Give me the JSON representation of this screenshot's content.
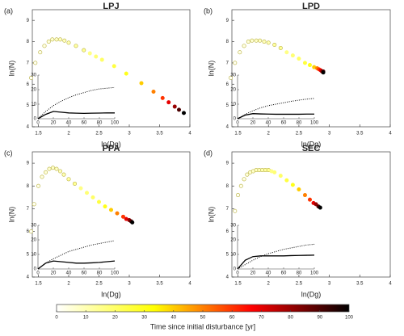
{
  "chart_data": [
    {
      "type": "scatter",
      "title": "LPJ",
      "panel_label": "(a)",
      "xlabel": "ln(Dg)",
      "ylabel": "ln(N)",
      "xlim": [
        1.4,
        4
      ],
      "ylim": [
        4,
        9.5
      ],
      "xticks": [
        1.5,
        2,
        2.5,
        3,
        3.5,
        4
      ],
      "yticks": [
        4,
        5,
        6,
        7,
        8,
        9
      ],
      "x": [
        1.38,
        1.45,
        1.53,
        1.6,
        1.67,
        1.73,
        1.8,
        1.86,
        1.93,
        2.0,
        2.12,
        2.25,
        2.35,
        2.45,
        2.55,
        2.75,
        2.95,
        3.2,
        3.4,
        3.55,
        3.65,
        3.75,
        3.82,
        3.9
      ],
      "y": [
        6.3,
        7.0,
        7.5,
        7.8,
        8.0,
        8.1,
        8.1,
        8.1,
        8.05,
        7.95,
        7.8,
        7.6,
        7.45,
        7.3,
        7.15,
        6.85,
        6.5,
        6.05,
        5.65,
        5.35,
        5.15,
        4.95,
        4.8,
        4.65
      ],
      "t": [
        1,
        2,
        3,
        4,
        5,
        6,
        7,
        8,
        9,
        10,
        12,
        14,
        16,
        18,
        20,
        25,
        30,
        40,
        50,
        60,
        70,
        80,
        90,
        100
      ],
      "inset": {
        "type": "line",
        "xlim": [
          0,
          100
        ],
        "ylim": [
          0,
          30
        ],
        "xticks": [
          0,
          20,
          40,
          60,
          80,
          100
        ],
        "yticks": [
          0,
          10,
          20,
          30
        ],
        "x": [
          0,
          10,
          20,
          30,
          40,
          50,
          60,
          70,
          80,
          90,
          100
        ],
        "series": [
          {
            "style": "dotted",
            "values": [
              0,
              5,
              9,
              12,
              14.5,
              16.5,
              18,
              19.5,
              20.5,
              21,
              21.5
            ]
          },
          {
            "style": "solid",
            "values": [
              0,
              3,
              5,
              4.5,
              4,
              3.8,
              3.7,
              3.8,
              3.9,
              4,
              4
            ]
          }
        ]
      }
    },
    {
      "type": "scatter",
      "title": "LPD",
      "panel_label": "(b)",
      "xlabel": "ln(Dg)",
      "ylabel": "ln(N)",
      "xlim": [
        1.4,
        4
      ],
      "ylim": [
        4,
        9.5
      ],
      "xticks": [
        1.5,
        2,
        2.5,
        3,
        3.5,
        4
      ],
      "yticks": [
        4,
        5,
        6,
        7,
        8,
        9
      ],
      "x": [
        1.38,
        1.45,
        1.53,
        1.6,
        1.67,
        1.73,
        1.8,
        1.86,
        1.93,
        2.0,
        2.1,
        2.2,
        2.3,
        2.4,
        2.5,
        2.6,
        2.68,
        2.75,
        2.8,
        2.83,
        2.86,
        2.88,
        2.9,
        2.9
      ],
      "y": [
        6.3,
        7.0,
        7.5,
        7.8,
        8.0,
        8.05,
        8.05,
        8.05,
        8.0,
        7.95,
        7.85,
        7.7,
        7.5,
        7.35,
        7.2,
        7.0,
        6.9,
        6.8,
        6.75,
        6.7,
        6.65,
        6.6,
        6.6,
        6.55
      ],
      "t": [
        1,
        2,
        3,
        4,
        5,
        6,
        7,
        8,
        9,
        10,
        12,
        14,
        16,
        18,
        20,
        25,
        30,
        40,
        50,
        60,
        70,
        80,
        90,
        100
      ],
      "inset": {
        "type": "line",
        "xlim": [
          0,
          100
        ],
        "ylim": [
          0,
          30
        ],
        "xticks": [
          0,
          20,
          40,
          60,
          80,
          100
        ],
        "yticks": [
          0,
          10,
          20,
          30
        ],
        "x": [
          0,
          10,
          20,
          30,
          40,
          50,
          60,
          70,
          80,
          90,
          100
        ],
        "series": [
          {
            "style": "dotted",
            "values": [
              0,
              3,
              5.5,
              7.5,
              9,
              10,
              11,
              12,
              12.8,
              13.5,
              14
            ]
          },
          {
            "style": "solid",
            "values": [
              0,
              2.5,
              3.5,
              3.3,
              3.2,
              3.1,
              3.1,
              3.1,
              3.1,
              3.2,
              3.2
            ]
          }
        ]
      }
    },
    {
      "type": "scatter",
      "title": "PPA",
      "panel_label": "(c)",
      "xlabel": "ln(Dg)",
      "ylabel": "ln(N)",
      "xlim": [
        1.4,
        4
      ],
      "ylim": [
        4,
        9.5
      ],
      "xticks": [
        1.5,
        2,
        2.5,
        3,
        3.5,
        4
      ],
      "yticks": [
        4,
        5,
        6,
        7,
        8,
        9
      ],
      "x": [
        1.38,
        1.43,
        1.5,
        1.56,
        1.62,
        1.68,
        1.74,
        1.8,
        1.86,
        1.92,
        2.0,
        2.1,
        2.2,
        2.3,
        2.4,
        2.5,
        2.6,
        2.7,
        2.8,
        2.9,
        2.95,
        3.0,
        3.03,
        3.05
      ],
      "y": [
        6.0,
        7.2,
        8.0,
        8.4,
        8.6,
        8.75,
        8.8,
        8.75,
        8.65,
        8.5,
        8.3,
        8.1,
        7.9,
        7.7,
        7.5,
        7.3,
        7.1,
        6.95,
        6.8,
        6.65,
        6.55,
        6.5,
        6.45,
        6.4
      ],
      "t": [
        1,
        2,
        3,
        4,
        5,
        6,
        7,
        8,
        9,
        10,
        12,
        14,
        16,
        18,
        20,
        25,
        30,
        40,
        50,
        60,
        70,
        80,
        90,
        100
      ],
      "inset": {
        "type": "line",
        "xlim": [
          0,
          100
        ],
        "ylim": [
          0,
          30
        ],
        "xticks": [
          0,
          20,
          40,
          60,
          80,
          100
        ],
        "yticks": [
          0,
          10,
          20,
          30
        ],
        "x": [
          0,
          10,
          20,
          30,
          40,
          50,
          60,
          70,
          80,
          90,
          100
        ],
        "series": [
          {
            "style": "dotted",
            "values": [
              0,
              4,
              7,
              9.5,
              12,
              13.5,
              15,
              16.5,
              17.5,
              18.5,
              19.5
            ]
          },
          {
            "style": "solid",
            "values": [
              0,
              4,
              5.5,
              5,
              4.5,
              4,
              4,
              4.2,
              4.5,
              5,
              5.5
            ]
          }
        ]
      }
    },
    {
      "type": "scatter",
      "title": "SEC",
      "panel_label": "(d)",
      "xlabel": "ln(Dg)",
      "ylabel": "ln(N)",
      "xlim": [
        1.4,
        4
      ],
      "ylim": [
        4,
        9.5
      ],
      "xticks": [
        1.5,
        2,
        2.5,
        3,
        3.5,
        4
      ],
      "yticks": [
        4,
        5,
        6,
        7,
        8,
        9
      ],
      "x": [
        1.45,
        1.5,
        1.55,
        1.6,
        1.65,
        1.7,
        1.75,
        1.8,
        1.85,
        1.9,
        1.95,
        2.0,
        2.05,
        2.1,
        2.2,
        2.3,
        2.4,
        2.5,
        2.6,
        2.68,
        2.74,
        2.78,
        2.82,
        2.85
      ],
      "y": [
        6.9,
        7.6,
        8.0,
        8.3,
        8.5,
        8.6,
        8.65,
        8.7,
        8.7,
        8.7,
        8.7,
        8.7,
        8.65,
        8.6,
        8.45,
        8.25,
        8.05,
        7.85,
        7.6,
        7.4,
        7.25,
        7.2,
        7.1,
        7.05
      ],
      "t": [
        1,
        2,
        3,
        4,
        5,
        6,
        7,
        8,
        9,
        10,
        12,
        14,
        16,
        18,
        20,
        25,
        30,
        40,
        50,
        60,
        70,
        80,
        90,
        100
      ],
      "inset": {
        "type": "line",
        "xlim": [
          0,
          100
        ],
        "ylim": [
          0,
          30
        ],
        "xticks": [
          0,
          20,
          40,
          60,
          80,
          100
        ],
        "yticks": [
          0,
          10,
          20,
          30
        ],
        "x": [
          0,
          10,
          20,
          30,
          40,
          50,
          60,
          70,
          80,
          90,
          100
        ],
        "series": [
          {
            "style": "dotted",
            "values": [
              0,
              3,
              6,
              8.5,
              10.5,
              12,
              13.5,
              14.5,
              15.5,
              16.5,
              17
            ]
          },
          {
            "style": "solid",
            "values": [
              0,
              6,
              8.5,
              9,
              9,
              9,
              9,
              9.2,
              9.3,
              9.4,
              9.5
            ]
          }
        ]
      }
    },
    {
      "type": "colorbar",
      "label": "Time since initial disturbance [yr]",
      "xlim": [
        0,
        100
      ],
      "xticks": [
        0,
        10,
        20,
        30,
        40,
        50,
        60,
        70,
        80,
        90,
        100
      ],
      "colormap": [
        "#ffffff",
        "#ffff00",
        "#ff0000",
        "#000000"
      ]
    }
  ]
}
